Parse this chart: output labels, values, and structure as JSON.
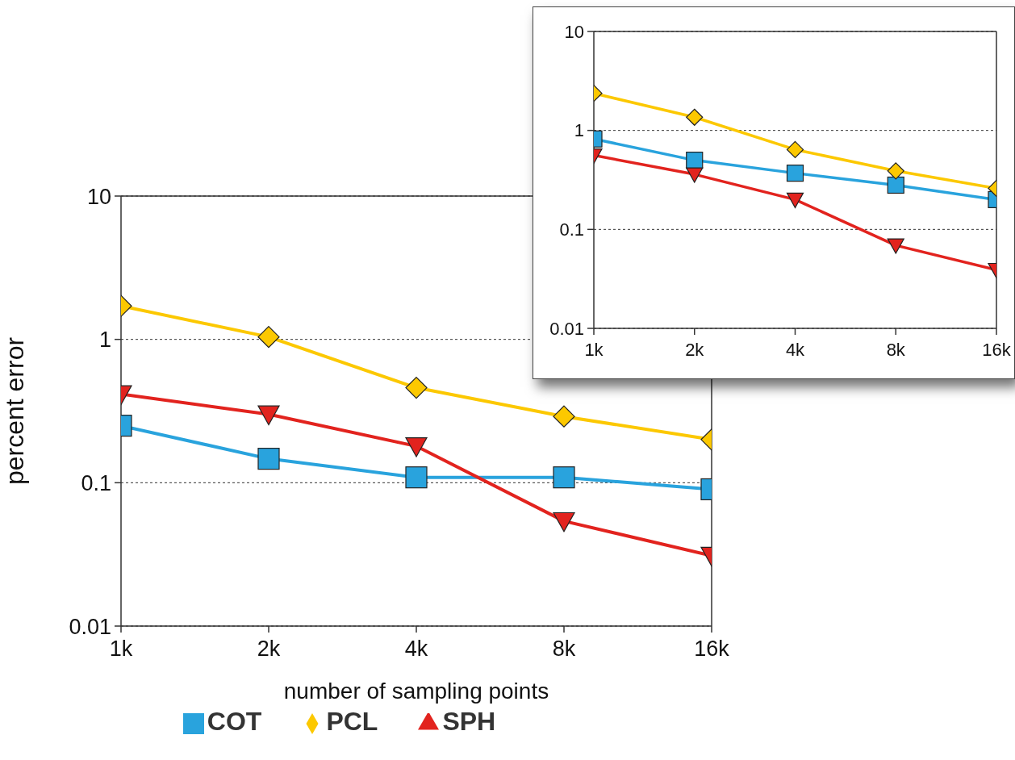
{
  "chart_data": [
    {
      "type": "line",
      "xlabel": "number of sampling points",
      "ylabel": "percent error",
      "categories": [
        "1k",
        "2k",
        "4k",
        "8k",
        "16k"
      ],
      "series": [
        {
          "name": "COT",
          "color": "#29a3dd",
          "marker": "square",
          "values": [
            0.25,
            0.147,
            0.109,
            0.109,
            0.09
          ]
        },
        {
          "name": "PCL",
          "color": "#fcc800",
          "marker": "diamond",
          "values": [
            1.71,
            1.04,
            0.46,
            0.29,
            0.2
          ]
        },
        {
          "name": "SPH",
          "color": "#e2231e",
          "marker": "triangle",
          "values": [
            0.415,
            0.3,
            0.18,
            0.054,
            0.031
          ]
        }
      ],
      "ylim": [
        0.01,
        10
      ],
      "yticks": [
        0.01,
        0.1,
        1,
        10
      ],
      "log": true,
      "grid": "y",
      "legend": "bottom"
    },
    {
      "type": "line",
      "categories": [
        "1k",
        "2k",
        "4k",
        "8k",
        "16k"
      ],
      "series": [
        {
          "color": "#29a3dd",
          "marker": "square",
          "values": [
            0.82,
            0.5,
            0.37,
            0.28,
            0.2
          ]
        },
        {
          "color": "#fcc800",
          "marker": "diamond",
          "values": [
            2.37,
            1.36,
            0.64,
            0.39,
            0.26
          ]
        },
        {
          "color": "#e2231e",
          "marker": "triangle",
          "values": [
            0.56,
            0.36,
            0.2,
            0.069,
            0.039
          ]
        }
      ],
      "ylim": [
        0.01,
        10
      ],
      "yticks": [
        0.01,
        0.1,
        1,
        10
      ],
      "log": true,
      "grid": "y"
    }
  ]
}
